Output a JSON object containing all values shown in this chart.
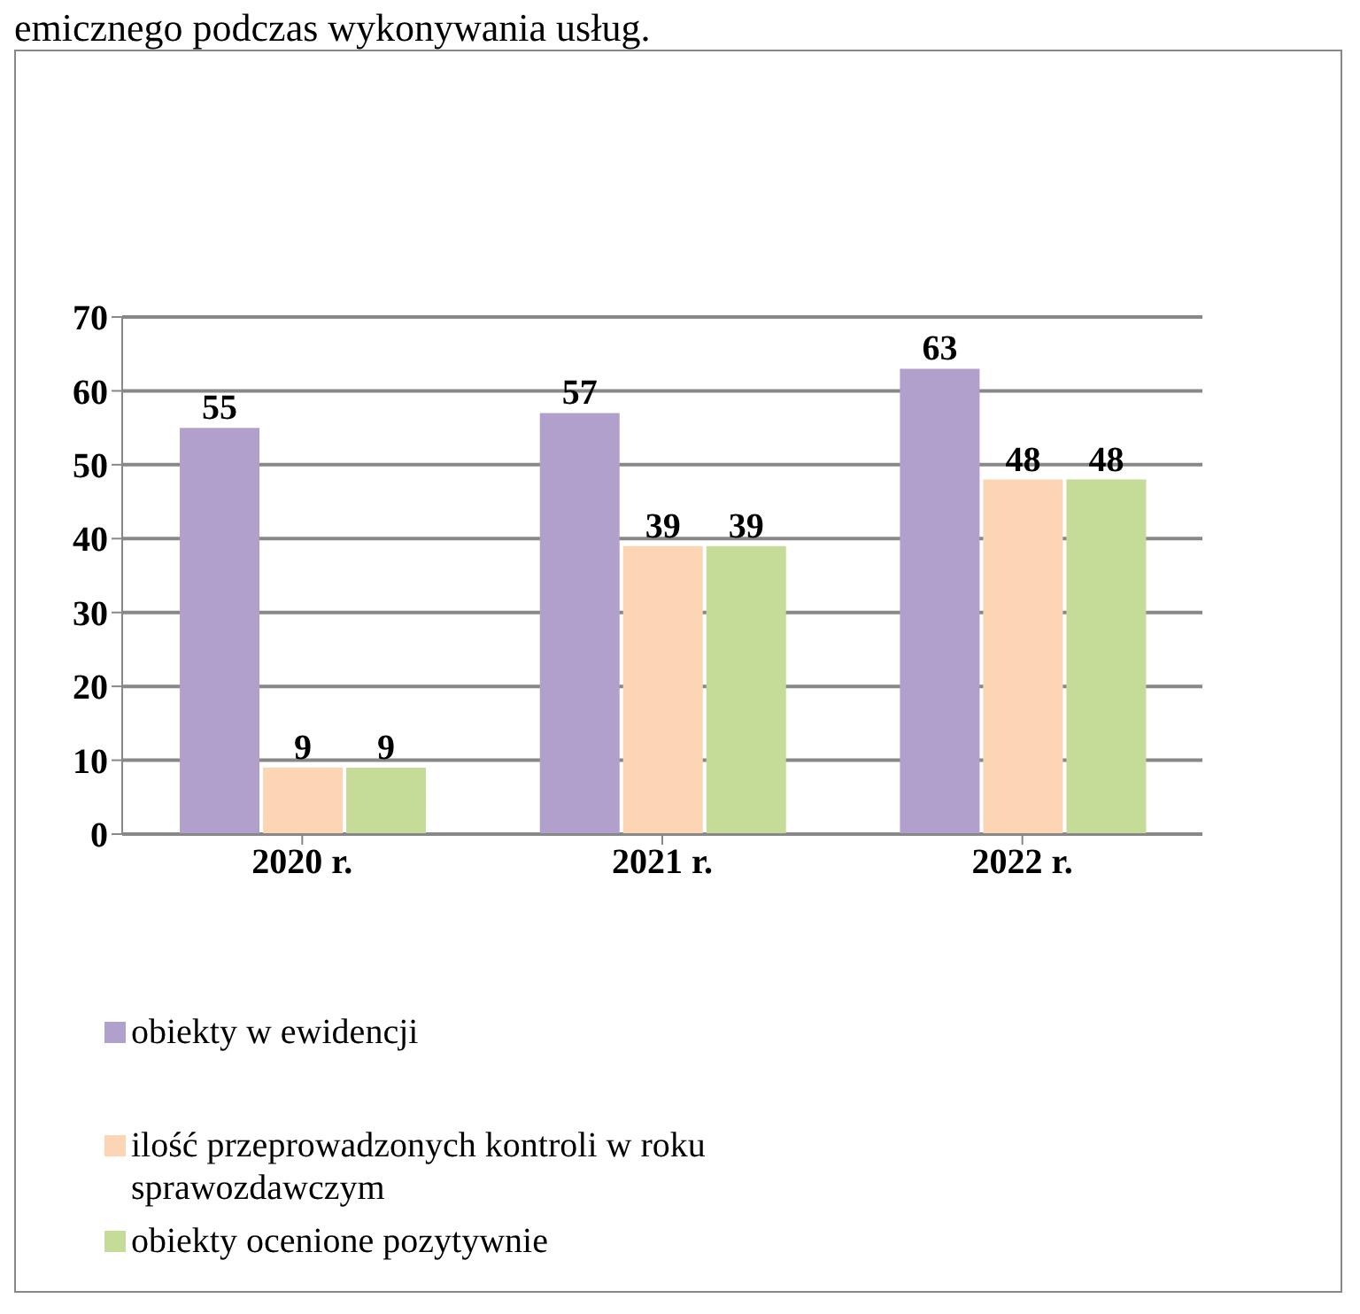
{
  "chart_data": {
    "type": "bar",
    "categories": [
      "2020 r.",
      "2021 r.",
      "2022 r."
    ],
    "series": [
      {
        "name": "obiekty w ewidencji",
        "color": "#b1a0cc",
        "values": [
          55,
          57,
          63
        ]
      },
      {
        "name": "ilość przeprowadzonych kontroli w roku sprawozdawczym",
        "color": "#fcd5b4",
        "values": [
          9,
          39,
          48
        ]
      },
      {
        "name": "obiekty ocenione pozytywnie",
        "color": "#c4dc98",
        "values": [
          9,
          39,
          48
        ]
      }
    ],
    "ylim": [
      0,
      70
    ],
    "yticks": [
      0,
      10,
      20,
      30,
      40,
      50,
      60,
      70
    ],
    "grid": "y",
    "data_labels": true,
    "legend": "bottom",
    "annotations": [
      "emicznego podczas wykonywania usług."
    ]
  }
}
